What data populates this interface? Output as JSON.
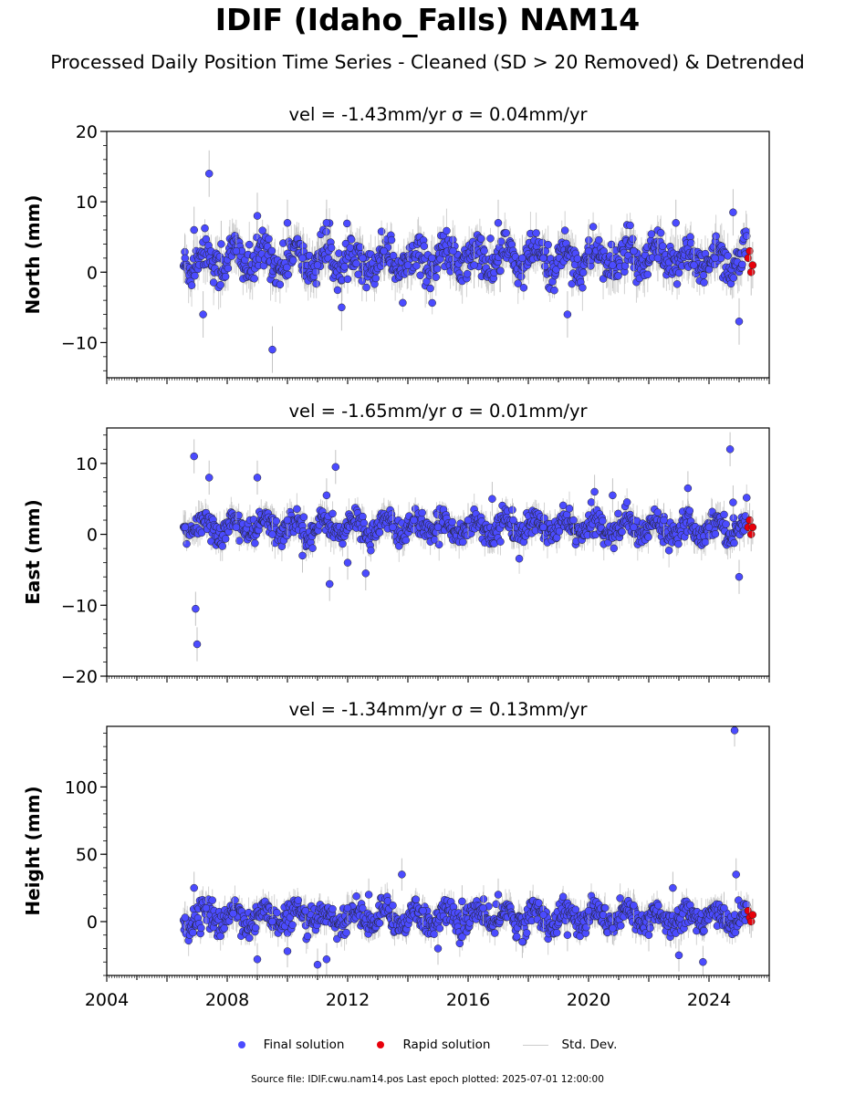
{
  "title": "IDIF (Idaho_Falls) NAM14",
  "subtitle": "Processed Daily Position Time Series - Cleaned (SD > 20 Removed) & Detrended",
  "legend": {
    "final": "Final solution",
    "rapid": "Rapid solution",
    "std": "Std. Dev."
  },
  "footer": "Source file: IDIF.cwu.nam14.pos  Last epoch plotted: 2025-07-01 12:00:00",
  "colors": {
    "final": "#4b4bff",
    "rapid": "#e8000b",
    "std": "#b4b4b4",
    "outline": "#222222"
  },
  "chart_data": [
    {
      "type": "scatter",
      "panel": "north",
      "title": "vel = -1.43mm/yr   σ = 0.04mm/yr",
      "ylabel": "North (mm)",
      "xlim": [
        2004.0,
        2026.0
      ],
      "ylim": [
        -15,
        20
      ],
      "yticks": [
        -10,
        0,
        10,
        20
      ],
      "xticks": [],
      "series": [
        {
          "name": "Final solution",
          "x": [
            2006.6,
            2006.9,
            2007.2,
            2007.4,
            2007.8,
            2008.3,
            2009.0,
            2009.5,
            2010.0,
            2010.5,
            2011.0,
            2011.3,
            2011.8,
            2012.5,
            2013.2,
            2014.0,
            2014.8,
            2015.5,
            2016.2,
            2017.0,
            2017.8,
            2018.5,
            2019.3,
            2020.0,
            2020.8,
            2021.5,
            2022.3,
            2022.9,
            2023.5,
            2024.2,
            2024.8,
            2025.0
          ],
          "y": [
            2,
            6,
            -6,
            14,
            4,
            3,
            8,
            -11,
            7,
            2,
            1,
            7,
            -5,
            2,
            3,
            1,
            2,
            3,
            1,
            7,
            2,
            2,
            -6,
            3,
            1,
            3,
            2,
            7,
            1,
            2,
            8.5,
            -7
          ]
        },
        {
          "name": "Rapid solution",
          "x": [
            2025.3,
            2025.35,
            2025.4,
            2025.45
          ],
          "y": [
            2,
            3,
            0,
            1
          ]
        }
      ]
    },
    {
      "type": "scatter",
      "panel": "east",
      "title": "vel = -1.65mm/yr   σ = 0.01mm/yr",
      "ylabel": "East (mm)",
      "xlim": [
        2004.0,
        2026.0
      ],
      "ylim": [
        -20,
        15
      ],
      "yticks": [
        -20,
        -10,
        0,
        10
      ],
      "xticks": [],
      "series": [
        {
          "name": "Final solution",
          "x": [
            2006.6,
            2006.9,
            2006.95,
            2007.0,
            2007.4,
            2008.3,
            2009.0,
            2009.5,
            2010.0,
            2010.5,
            2011.3,
            2011.4,
            2011.6,
            2012.0,
            2012.6,
            2013.5,
            2014.2,
            2015.0,
            2016.0,
            2016.8,
            2017.5,
            2018.5,
            2019.5,
            2020.2,
            2020.8,
            2021.5,
            2022.5,
            2023.3,
            2024.0,
            2024.7,
            2024.8,
            2025.0
          ],
          "y": [
            1,
            11,
            -10.5,
            -15.5,
            8,
            1,
            8,
            0,
            2,
            -3,
            5.5,
            -7,
            9.5,
            -4,
            -5.5,
            1,
            2,
            1,
            2,
            5,
            2,
            1,
            2,
            6,
            5.5,
            1,
            2,
            6.5,
            1,
            12,
            4.5,
            -6
          ]
        },
        {
          "name": "Rapid solution",
          "x": [
            2025.3,
            2025.35,
            2025.4,
            2025.45
          ],
          "y": [
            1,
            2,
            0,
            1
          ]
        }
      ]
    },
    {
      "type": "scatter",
      "panel": "height",
      "title": "vel = -1.34mm/yr   σ = 0.13mm/yr",
      "ylabel": "Height (mm)",
      "xlim": [
        2004.0,
        2026.0
      ],
      "ylim": [
        -40,
        145
      ],
      "yticks": [
        0,
        50,
        100
      ],
      "xticks": [
        2004,
        2008,
        2012,
        2016,
        2020,
        2024
      ],
      "series": [
        {
          "name": "Final solution",
          "x": [
            2006.6,
            2006.9,
            2007.3,
            2008.2,
            2009.0,
            2009.5,
            2010.0,
            2010.6,
            2011.0,
            2011.3,
            2012.0,
            2012.7,
            2013.5,
            2013.8,
            2014.5,
            2015.0,
            2015.8,
            2016.5,
            2017.0,
            2017.8,
            2018.5,
            2019.3,
            2020.0,
            2020.8,
            2021.5,
            2022.0,
            2022.8,
            2023.0,
            2023.8,
            2024.5,
            2024.85,
            2024.9
          ],
          "y": [
            3,
            25,
            10,
            6,
            -28,
            0,
            -22,
            8,
            -32,
            -28,
            10,
            20,
            12,
            35,
            8,
            -20,
            15,
            10,
            20,
            -15,
            5,
            -10,
            8,
            -5,
            12,
            -10,
            25,
            -25,
            -30,
            10,
            142,
            35
          ]
        },
        {
          "name": "Rapid solution",
          "x": [
            2025.3,
            2025.35,
            2025.4,
            2025.45
          ],
          "y": [
            8,
            3,
            0,
            5
          ]
        }
      ]
    }
  ]
}
